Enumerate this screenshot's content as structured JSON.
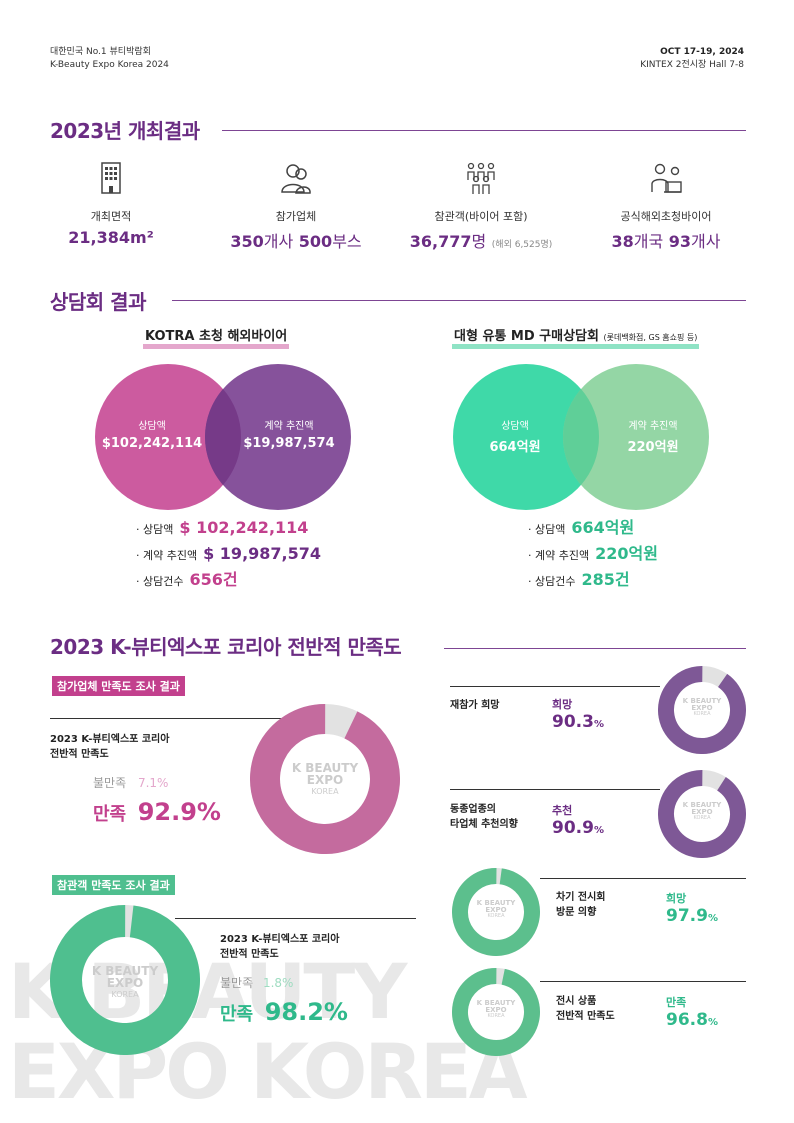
{
  "header": {
    "left_line1": "대한민국 No.1 뷰티박람회",
    "left_line2": "K-Beauty Expo Korea 2024",
    "date": "OCT 17-19, 2024",
    "venue": "KINTEX 2전시장 Hall 7-8"
  },
  "results": {
    "title": "2023년 개최결과",
    "stats": [
      {
        "icon": "building-icon",
        "label": "개최면적",
        "value": "21,384m²"
      },
      {
        "icon": "people-icon",
        "label": "참가업체",
        "value1": "350",
        "unit1": "개사",
        "value2": "500",
        "unit2": "부스"
      },
      {
        "icon": "visitors-icon",
        "label": "참관객(바이어 포함)",
        "value1": "36,777",
        "unit1": "명",
        "note": "(해외 6,525명)"
      },
      {
        "icon": "buyer-meeting-icon",
        "label": "공식해외초청바이어",
        "value1": "38",
        "unit1": "개국",
        "value2": "93",
        "unit2": "개사"
      }
    ]
  },
  "negotiation": {
    "title": "상담회 결과",
    "kotra": {
      "title": "KOTRA 초청 해외바이어",
      "venn_left_label": "상담액",
      "venn_left_value": "$102,242,114",
      "venn_right_label": "계약 추진액",
      "venn_right_value": "$19,987,574",
      "b1_label": "· 상담액",
      "b1_value": "$ 102,242,114",
      "b2_label": "· 계약 추진액",
      "b2_value": "$ 19,987,574",
      "b3_label": "· 상담건수",
      "b3_value": "656건"
    },
    "md": {
      "title": "대형 유통 MD 구매상담회",
      "title_note": "(롯데백화점, GS 홈쇼핑 등)",
      "venn_left_label": "상담액",
      "venn_left_value": "664억원",
      "venn_right_label": "계약 추진액",
      "venn_right_value": "220억원",
      "b1_label": "· 상담액",
      "b1_value": "664억원",
      "b2_label": "· 계약 추진액",
      "b2_value": "220억원",
      "b3_label": "· 상담건수",
      "b3_value": "285건"
    }
  },
  "satisfaction": {
    "title": "2023 K-뷰티엑스포 코리아 전반적 만족도",
    "logo_line1": "K BEAUTY",
    "logo_line2": "EXPO",
    "logo_line3": "KOREA",
    "exhibitor": {
      "tag": "참가업체 만족도 조사 결과",
      "q_line1": "2023 K-뷰티엑스포 코리아",
      "q_line2": "전반적 만족도",
      "dis_label": "불만족",
      "dis_value": "7.1%",
      "sat_label": "만족",
      "sat_value": "92.9%",
      "sat_fraction": 0.929
    },
    "visitor": {
      "tag": "참관객 만족도 조사 결과",
      "q_line1": "2023 K-뷰티엑스포 코리아",
      "q_line2": "전반적 만족도",
      "dis_label": "불만족",
      "dis_value": "1.8%",
      "sat_label": "만족",
      "sat_value": "98.2%",
      "sat_fraction": 0.982
    },
    "small": [
      {
        "q_line1": "재참가 희망",
        "q_line2": "",
        "label": "희망",
        "num": "90.3",
        "pct": "%",
        "fraction": 0.903,
        "color": "#7e5896"
      },
      {
        "q_line1": "동종업종의",
        "q_line2": "타업체 추천의향",
        "label": "추천",
        "num": "90.9",
        "pct": "%",
        "fraction": 0.909,
        "color": "#7e5896"
      },
      {
        "q_line1": "차기 전시회",
        "q_line2": "방문 의향",
        "label": "희망",
        "num": "97.9",
        "pct": "%",
        "fraction": 0.979,
        "color": "#5cbf8d"
      },
      {
        "q_line1": "전시 상품",
        "q_line2": "전반적 만족도",
        "label": "만족",
        "num": "96.8",
        "pct": "%",
        "fraction": 0.968,
        "color": "#5cbf8d"
      }
    ]
  },
  "watermark": {
    "line1": "K BEAUTY",
    "line2": "EXPO KOREA"
  },
  "colors": {
    "purple": "#6b2d83",
    "magenta": "#c2408d",
    "pink_venn": "#cc5b9f",
    "purple_venn": "#7d4593",
    "green_venn": "#3fd9a8",
    "green_light": "#8ed4a0",
    "exh_donut": "#c46b9e",
    "vis_donut": "#4fbf8f"
  }
}
